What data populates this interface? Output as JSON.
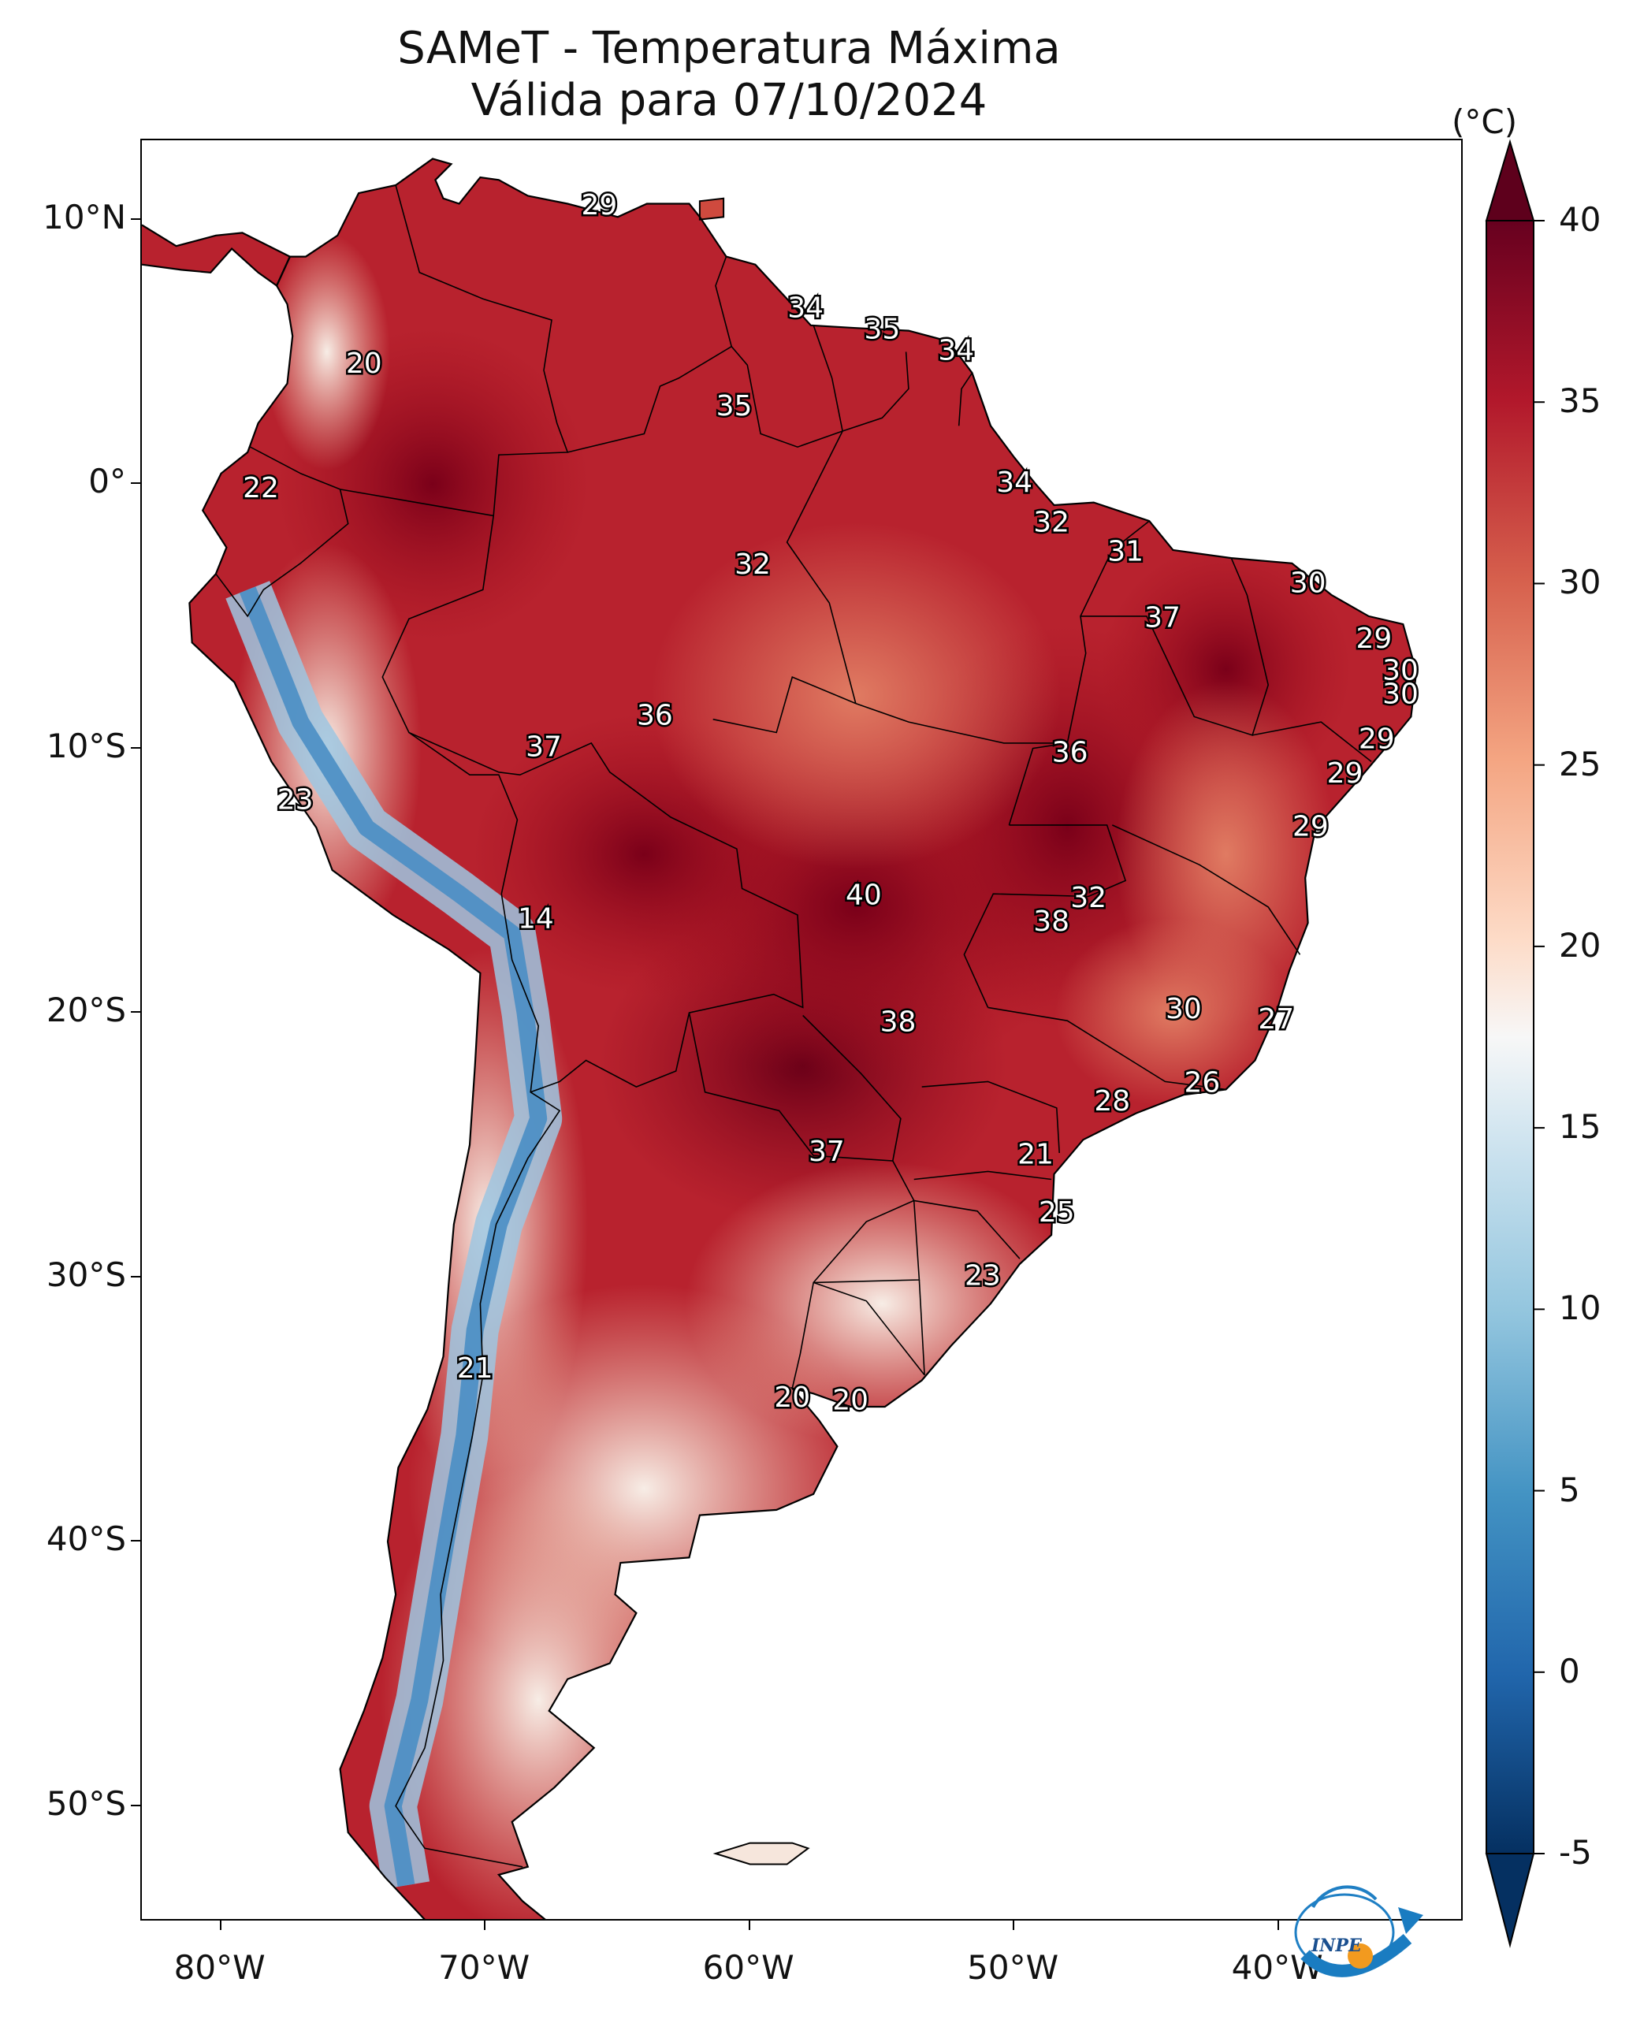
{
  "title": {
    "line1": "SAMeT - Temperatura Máxima",
    "line2": "Válida para 07/10/2024"
  },
  "axes": {
    "x_ticks": [
      {
        "lon": -80,
        "label": "80°W"
      },
      {
        "lon": -70,
        "label": "70°W"
      },
      {
        "lon": -60,
        "label": "60°W"
      },
      {
        "lon": -50,
        "label": "50°W"
      },
      {
        "lon": -40,
        "label": "40°W"
      }
    ],
    "y_ticks": [
      {
        "lat": 10,
        "label": "10°N"
      },
      {
        "lat": 0,
        "label": "0°"
      },
      {
        "lat": -10,
        "label": "10°S"
      },
      {
        "lat": -20,
        "label": "20°S"
      },
      {
        "lat": -30,
        "label": "30°S"
      },
      {
        "lat": -40,
        "label": "40°S"
      },
      {
        "lat": -50,
        "label": "50°S"
      }
    ],
    "lon_range": [
      -83,
      -33
    ],
    "lat_range": [
      -56,
      13
    ]
  },
  "colorbar": {
    "unit": "(°C)",
    "min": -5,
    "max": 40,
    "ticks": [
      {
        "value": 40,
        "label": "40"
      },
      {
        "value": 35,
        "label": "35"
      },
      {
        "value": 30,
        "label": "30"
      },
      {
        "value": 25,
        "label": "25"
      },
      {
        "value": 20,
        "label": "20"
      },
      {
        "value": 15,
        "label": "15"
      },
      {
        "value": 10,
        "label": "10"
      },
      {
        "value": 5,
        "label": "5"
      },
      {
        "value": 0,
        "label": "0"
      },
      {
        "value": -5,
        "label": "-5"
      }
    ],
    "colormap": "RdBu_r",
    "extend": "both"
  },
  "point_labels": [
    {
      "lon": -65.7,
      "lat": 10.5,
      "text": "29"
    },
    {
      "lon": -74.6,
      "lat": 4.5,
      "text": "20"
    },
    {
      "lon": -57.9,
      "lat": 6.6,
      "text": "34"
    },
    {
      "lon": -55.0,
      "lat": 5.8,
      "text": "35"
    },
    {
      "lon": -52.2,
      "lat": 5.0,
      "text": "34"
    },
    {
      "lon": -60.6,
      "lat": 2.9,
      "text": "35"
    },
    {
      "lon": -78.5,
      "lat": -0.2,
      "text": "22"
    },
    {
      "lon": -50.0,
      "lat": 0.0,
      "text": "34"
    },
    {
      "lon": -48.6,
      "lat": -1.5,
      "text": "32"
    },
    {
      "lon": -59.9,
      "lat": -3.1,
      "text": "32"
    },
    {
      "lon": -45.8,
      "lat": -2.6,
      "text": "31"
    },
    {
      "lon": -38.9,
      "lat": -3.8,
      "text": "30"
    },
    {
      "lon": -44.4,
      "lat": -5.1,
      "text": "37"
    },
    {
      "lon": -36.4,
      "lat": -5.9,
      "text": "29"
    },
    {
      "lon": -35.4,
      "lat": -7.1,
      "text": "30"
    },
    {
      "lon": -35.4,
      "lat": -8.0,
      "text": "30"
    },
    {
      "lon": -63.6,
      "lat": -8.8,
      "text": "36"
    },
    {
      "lon": -67.8,
      "lat": -10.0,
      "text": "37"
    },
    {
      "lon": -47.9,
      "lat": -10.2,
      "text": "36"
    },
    {
      "lon": -36.3,
      "lat": -9.7,
      "text": "29"
    },
    {
      "lon": -37.5,
      "lat": -11.0,
      "text": "29"
    },
    {
      "lon": -77.2,
      "lat": -12.0,
      "text": "23"
    },
    {
      "lon": -38.8,
      "lat": -13.0,
      "text": "29"
    },
    {
      "lon": -55.7,
      "lat": -15.6,
      "text": "40"
    },
    {
      "lon": -47.2,
      "lat": -15.7,
      "text": "32"
    },
    {
      "lon": -48.6,
      "lat": -16.6,
      "text": "38"
    },
    {
      "lon": -68.1,
      "lat": -16.5,
      "text": "14"
    },
    {
      "lon": -43.6,
      "lat": -19.9,
      "text": "30"
    },
    {
      "lon": -54.4,
      "lat": -20.4,
      "text": "38"
    },
    {
      "lon": -40.1,
      "lat": -20.3,
      "text": "27"
    },
    {
      "lon": -42.9,
      "lat": -22.7,
      "text": "26"
    },
    {
      "lon": -46.3,
      "lat": -23.4,
      "text": "28"
    },
    {
      "lon": -57.1,
      "lat": -25.3,
      "text": "37"
    },
    {
      "lon": -49.2,
      "lat": -25.4,
      "text": "21"
    },
    {
      "lon": -48.4,
      "lat": -27.6,
      "text": "25"
    },
    {
      "lon": -51.2,
      "lat": -30.0,
      "text": "23"
    },
    {
      "lon": -70.4,
      "lat": -33.5,
      "text": "21"
    },
    {
      "lon": -58.4,
      "lat": -34.6,
      "text": "20"
    },
    {
      "lon": -56.2,
      "lat": -34.7,
      "text": "20"
    }
  ],
  "logo_text": "INPE"
}
